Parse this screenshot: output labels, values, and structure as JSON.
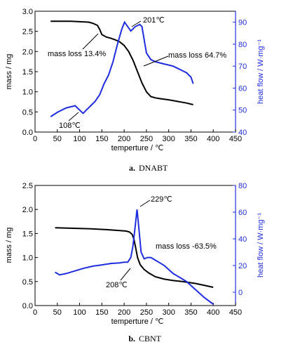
{
  "chart_data": [
    {
      "type": "line",
      "caption_letter": "a.",
      "caption_name": "DNABT",
      "xlabel": "temperture / ℃",
      "ylabel": "mass / mg",
      "ylabel_right": "heat flow / W·mg⁻¹",
      "xlim": [
        0,
        450
      ],
      "ylim": [
        0,
        3.0
      ],
      "ylim_right": [
        40,
        95
      ],
      "x_ticks": [
        "0",
        "50",
        "100",
        "150",
        "200",
        "250",
        "300",
        "350",
        "400",
        "450"
      ],
      "y_ticks": [
        "0.0",
        "0.5",
        "1.0",
        "1.5",
        "2.0",
        "2.5",
        "3.0"
      ],
      "y_ticks_right": [
        "40",
        "50",
        "60",
        "70",
        "80",
        "90"
      ],
      "colors": {
        "mass": "#000000",
        "heat": "#1f2de0"
      },
      "series": [
        {
          "axis": "left",
          "x": [
            35,
            60,
            80,
            100,
            120,
            130,
            140,
            145,
            150,
            160,
            170,
            180,
            190,
            200,
            210,
            220,
            230,
            240,
            250,
            260,
            270,
            280,
            300,
            320,
            340,
            355
          ],
          "values": [
            2.75,
            2.75,
            2.75,
            2.74,
            2.73,
            2.7,
            2.65,
            2.55,
            2.42,
            2.36,
            2.33,
            2.29,
            2.24,
            2.15,
            2.0,
            1.78,
            1.5,
            1.22,
            1.0,
            0.88,
            0.85,
            0.83,
            0.8,
            0.76,
            0.72,
            0.68
          ]
        },
        {
          "axis": "right",
          "x": [
            35,
            50,
            70,
            90,
            100,
            108,
            115,
            125,
            135,
            145,
            155,
            165,
            175,
            185,
            195,
            201,
            208,
            215,
            225,
            235,
            240,
            245,
            250,
            260,
            270,
            280,
            290,
            300,
            310,
            320,
            330,
            340,
            350,
            355
          ],
          "values": [
            47,
            49,
            51,
            52,
            50,
            48.5,
            50,
            52,
            54,
            57,
            62,
            66,
            72,
            80,
            87,
            90,
            88,
            86,
            88,
            89,
            88,
            82,
            76,
            73,
            72,
            71.5,
            71,
            70.5,
            70,
            69,
            68,
            67,
            65,
            62
          ]
        }
      ],
      "annotations": [
        {
          "text": "201℃",
          "x": 201,
          "axis": "right",
          "y": 90
        },
        {
          "text": "mass loss 13.4%",
          "x": 145,
          "axis": "left",
          "y": 2.55
        },
        {
          "text": "mass loss 64.7%",
          "x": 210,
          "axis": "left",
          "y": 1.9
        },
        {
          "text": "108℃",
          "x": 108,
          "axis": "right",
          "y": 48.5
        }
      ]
    },
    {
      "type": "line",
      "caption_letter": "b.",
      "caption_name": "CBNT",
      "xlabel": "temperture / ℃",
      "ylabel": "mass / mg",
      "ylabel_right": "heat flow / W·mg⁻¹",
      "xlim": [
        0,
        450
      ],
      "ylim": [
        0,
        2.5
      ],
      "ylim_right": [
        -10,
        80
      ],
      "x_ticks": [
        "0",
        "50",
        "100",
        "150",
        "200",
        "250",
        "300",
        "350",
        "400",
        "450"
      ],
      "y_ticks": [
        "0.0",
        "0.5",
        "1.0",
        "1.5",
        "2.0",
        "2.5"
      ],
      "y_ticks_right": [
        "0",
        "20",
        "40",
        "60",
        "80"
      ],
      "colors": {
        "mass": "#000000",
        "heat": "#1f2de0"
      },
      "series": [
        {
          "axis": "left",
          "x": [
            45,
            80,
            120,
            160,
            190,
            205,
            212,
            218,
            222,
            226,
            230,
            236,
            245,
            255,
            270,
            290,
            310,
            330,
            360,
            400
          ],
          "values": [
            1.62,
            1.61,
            1.6,
            1.58,
            1.56,
            1.55,
            1.53,
            1.48,
            1.38,
            1.2,
            1.0,
            0.85,
            0.75,
            0.68,
            0.6,
            0.55,
            0.52,
            0.5,
            0.46,
            0.38
          ]
        },
        {
          "axis": "right",
          "x": [
            45,
            55,
            70,
            90,
            110,
            130,
            150,
            170,
            190,
            200,
            208,
            215,
            220,
            225,
            229,
            233,
            238,
            245,
            252,
            260,
            270,
            280,
            290,
            300,
            310,
            320,
            340,
            360,
            380,
            400
          ],
          "values": [
            15,
            13,
            14,
            16,
            18,
            19.5,
            20.5,
            21.5,
            22,
            22.5,
            22.5,
            26,
            35,
            50,
            62,
            48,
            30,
            25,
            26,
            26,
            24,
            22,
            20,
            17,
            14,
            12,
            8,
            2,
            -4,
            -9
          ]
        }
      ],
      "annotations": [
        {
          "text": "229℃",
          "x": 229,
          "axis": "right",
          "y": 62
        },
        {
          "text": "mass loss -63.5%",
          "x": 250,
          "axis": "left",
          "y": 1.1
        },
        {
          "text": "208℃",
          "x": 208,
          "axis": "right",
          "y": 22.5
        }
      ]
    }
  ]
}
